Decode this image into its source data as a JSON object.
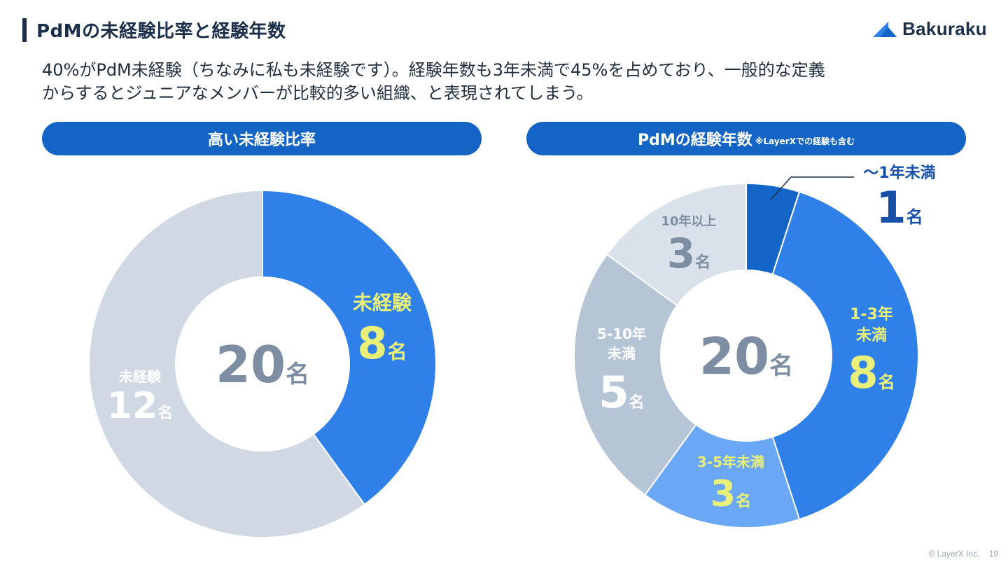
{
  "header": {
    "title": "PdMの未経験比率と経験年数",
    "logo_text": "Bakuraku"
  },
  "lead": {
    "line1": "40%がPdM未経験（ちなみに私も未経験です）。経験年数も3年未満で45%を占めており、一般的な定義",
    "line2": "からするとジュニアなメンバーが比較的多い組織、と表現されてしまう。"
  },
  "unit": "名",
  "footer": {
    "copyright": "© LayerX Inc.",
    "page": "19"
  },
  "colors": {
    "navy": "#1c2f4a",
    "pill": "#1464c5",
    "highlight": "#e9f07a",
    "center_text": "#7d8ea3"
  },
  "chart_data": [
    {
      "type": "pie",
      "variant": "donut",
      "title": "高い未経験比率",
      "center_label": "20",
      "categories": [
        "未経験",
        "未経験"
      ],
      "values": [
        8,
        12
      ],
      "slice_colors": [
        "#2f80e8",
        "#cfd8e3"
      ],
      "label_colors": [
        "#e9f07a",
        "#ffffff"
      ]
    },
    {
      "type": "pie",
      "variant": "donut",
      "title": "PdMの経験年数",
      "title_note": "※LayerXでの経験も含む",
      "center_label": "20",
      "categories": [
        "〜1年未満",
        "1-3年未満",
        "3-5年未満",
        "5-10年未満",
        "10年以上"
      ],
      "label_lines": [
        [
          "〜1年未満"
        ],
        [
          "1-3年",
          "未満"
        ],
        [
          "3-5年未満"
        ],
        [
          "5-10年",
          "未満"
        ],
        [
          "10年以上"
        ]
      ],
      "values": [
        1,
        8,
        3,
        5,
        3
      ],
      "slice_colors": [
        "#1565c8",
        "#2f80e8",
        "#6aa8f5",
        "#b6c5d6",
        "#d9e1ea"
      ],
      "label_colors": [
        "#1650a8",
        "#e9f07a",
        "#e9f07a",
        "#ffffff",
        "#7d8ea3"
      ]
    }
  ]
}
